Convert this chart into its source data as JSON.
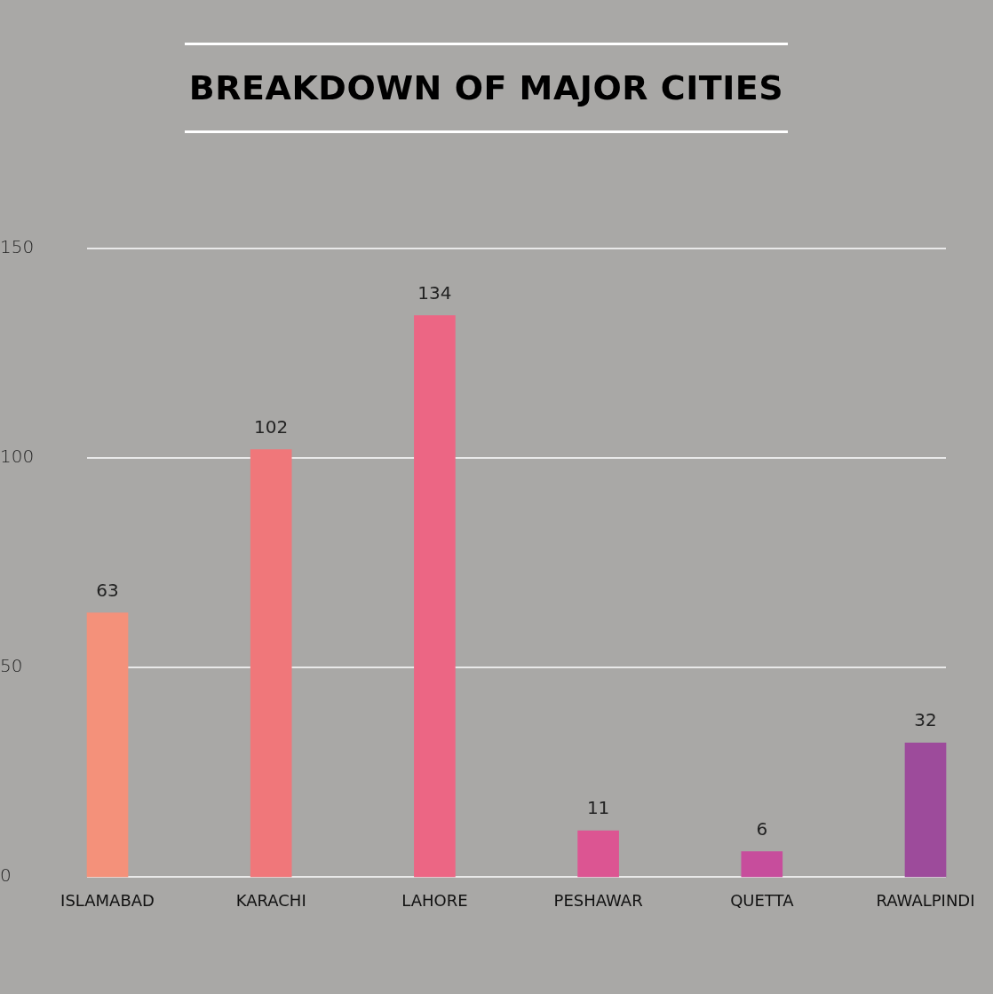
{
  "chart_data": {
    "type": "bar",
    "title": "BREAKDOWN OF MAJOR CITIES",
    "categories": [
      "ISLAMABAD",
      "KARACHI",
      "LAHORE",
      "PESHAWAR",
      "QUETTA",
      "RAWALPINDI"
    ],
    "values": [
      63,
      102,
      134,
      11,
      6,
      32
    ],
    "colors": [
      "#f4917a",
      "#f0777a",
      "#ec6684",
      "#dc5592",
      "#c74d9c",
      "#9d4b9b"
    ],
    "ylim": [
      0,
      150
    ],
    "yticks": [
      0,
      50,
      100,
      150
    ],
    "grid": "y",
    "legend": false,
    "data_labels": true
  }
}
